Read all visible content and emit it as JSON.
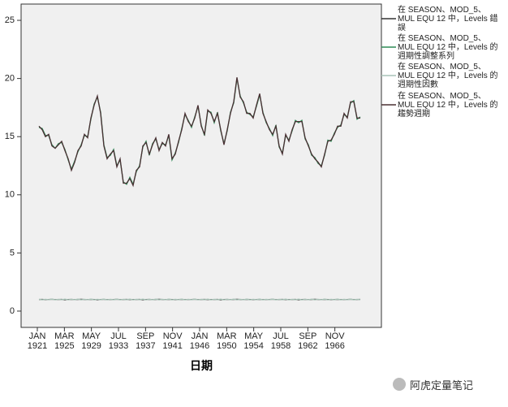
{
  "chart_data": {
    "type": "line",
    "x_label": "日期",
    "x": [
      1921.25,
      1921.75,
      1922.25,
      1922.75,
      1923.25,
      1923.75,
      1924.25,
      1924.75,
      1925.25,
      1925.75,
      1926.25,
      1926.75,
      1927.25,
      1927.75,
      1928.25,
      1928.75,
      1929.25,
      1929.75,
      1930.25,
      1930.75,
      1931.25,
      1931.75,
      1932.25,
      1932.75,
      1933.25,
      1933.75,
      1934.25,
      1934.75,
      1935.25,
      1935.75,
      1936.25,
      1936.75,
      1937.25,
      1937.75,
      1938.25,
      1938.75,
      1939.25,
      1939.75,
      1940.25,
      1940.75,
      1941.25,
      1941.75,
      1942.25,
      1942.75,
      1943.25,
      1943.75,
      1944.25,
      1944.75,
      1945.25,
      1945.75,
      1946.25,
      1946.75,
      1947.25,
      1947.75,
      1948.25,
      1948.75,
      1949.25,
      1949.75,
      1950.25,
      1950.75,
      1951.25,
      1951.75,
      1952.25,
      1952.75,
      1953.25,
      1953.75,
      1954.25,
      1954.75,
      1955.25,
      1955.75,
      1956.25,
      1956.75,
      1957.25,
      1957.75,
      1958.25,
      1958.75,
      1959.25,
      1959.75,
      1960.25,
      1960.75,
      1961.25,
      1961.75,
      1962.25,
      1962.75,
      1963.25,
      1963.75,
      1964.25,
      1964.75,
      1965.25,
      1965.75,
      1966.25,
      1966.75,
      1967.25,
      1967.75,
      1968.25,
      1968.75,
      1969.25,
      1969.75,
      1970.25,
      1970.75
    ],
    "series": [
      {
        "name": "在 SEASON、MOD_5、MUL EQU 12 中，Levels 錯誤",
        "color": "#333333",
        "values": [
          1.0,
          1.01,
          0.99,
          1.0,
          1.02,
          0.99,
          1.0,
          1.01,
          0.98,
          1.0,
          1.01,
          0.99,
          1.0,
          1.02,
          1.0,
          0.99,
          1.01,
          1.0,
          0.98,
          1.0,
          1.01,
          0.99,
          1.0,
          1.0,
          1.02,
          0.99,
          1.0,
          1.01,
          0.99,
          1.0,
          1.0,
          1.01,
          0.98,
          1.0,
          1.01,
          0.99,
          1.0,
          1.02,
          1.0,
          0.99,
          1.01,
          1.0,
          0.99,
          1.0,
          1.01,
          0.99,
          1.0,
          1.0,
          1.02,
          0.99,
          1.0,
          1.01,
          0.99,
          1.0,
          1.0,
          1.01,
          0.98,
          1.0,
          1.01,
          0.99,
          1.0,
          1.02,
          1.0,
          0.99,
          1.01,
          1.0,
          0.99,
          1.0,
          1.01,
          0.99,
          1.0,
          1.0,
          1.02,
          0.99,
          1.0,
          1.01,
          0.99,
          1.0,
          1.0,
          1.01,
          0.98,
          1.0,
          1.01,
          0.99,
          1.0,
          1.02,
          1.0,
          0.99,
          1.01,
          1.0,
          0.99,
          1.0,
          1.01,
          0.99,
          1.0,
          1.0,
          1.02,
          0.99,
          1.0,
          1.01
        ]
      },
      {
        "name": "在 SEASON、MOD_5、MUL EQU 12 中，Levels 的週期性調整系列",
        "color": "#2e8b57",
        "values": [
          15.8,
          15.7,
          15.1,
          15.1,
          14.3,
          14.0,
          14.4,
          14.5,
          13.9,
          13.0,
          12.2,
          12.9,
          13.7,
          14.3,
          15.1,
          15.0,
          16.5,
          17.8,
          18.4,
          17.1,
          14.3,
          13.2,
          13.4,
          13.9,
          12.5,
          13.0,
          11.1,
          10.9,
          11.5,
          10.9,
          12.0,
          12.5,
          14.1,
          14.6,
          13.4,
          14.4,
          14.8,
          13.9,
          14.4,
          14.3,
          15.1,
          13.0,
          13.6,
          14.5,
          15.7,
          16.9,
          16.4,
          15.8,
          16.7,
          17.6,
          16.0,
          15.1,
          17.2,
          17.1,
          16.2,
          17.1,
          15.5,
          14.4,
          15.5,
          17.1,
          17.9,
          20.0,
          18.5,
          17.9,
          17.1,
          16.9,
          16.7,
          17.6,
          18.6,
          17.1,
          16.2,
          15.7,
          15.1,
          16.0,
          14.1,
          13.6,
          15.1,
          14.7,
          15.5,
          16.4,
          16.2,
          16.4,
          14.8,
          14.3,
          13.4,
          13.2,
          12.7,
          12.5,
          13.4,
          14.7,
          14.6,
          15.3,
          15.8,
          16.0,
          16.9,
          16.7,
          17.9,
          18.1,
          16.5,
          16.7
        ]
      },
      {
        "name": "在 SEASON、MOD_5、MUL EQU 12 中，Levels 的週期性因數",
        "color": "#a9c4b8",
        "values": [
          1.03,
          0.97,
          1.02,
          0.98,
          1.03,
          0.97,
          1.02,
          0.98,
          1.03,
          0.97,
          1.02,
          0.98,
          1.03,
          0.97,
          1.02,
          0.98,
          1.03,
          0.97,
          1.02,
          0.98,
          1.03,
          0.97,
          1.02,
          0.98,
          1.03,
          0.97,
          1.02,
          0.98,
          1.03,
          0.97,
          1.02,
          0.98,
          1.03,
          0.97,
          1.02,
          0.98,
          1.03,
          0.97,
          1.02,
          0.98,
          1.03,
          0.97,
          1.02,
          0.98,
          1.03,
          0.97,
          1.02,
          0.98,
          1.03,
          0.97,
          1.02,
          0.98,
          1.03,
          0.97,
          1.02,
          0.98,
          1.03,
          0.97,
          1.02,
          0.98,
          1.03,
          0.97,
          1.02,
          0.98,
          1.03,
          0.97,
          1.02,
          0.98,
          1.03,
          0.97,
          1.02,
          0.98,
          1.03,
          0.97,
          1.02,
          0.98,
          1.03,
          0.97,
          1.02,
          0.98,
          1.03,
          0.97,
          1.02,
          0.98,
          1.03,
          0.97,
          1.02,
          0.98,
          1.03,
          0.97,
          1.02,
          0.98,
          1.03,
          0.97,
          1.02,
          0.98,
          1.03,
          0.97,
          1.02,
          0.98
        ]
      },
      {
        "name": "在 SEASON、MOD_5、MUL EQU 12 中，Levels 的趨勢週期",
        "color": "#4a3034",
        "values": [
          15.9,
          15.6,
          15.0,
          15.2,
          14.2,
          14.0,
          14.3,
          14.6,
          13.8,
          13.1,
          12.1,
          12.8,
          13.8,
          14.2,
          15.2,
          14.9,
          16.6,
          17.7,
          18.5,
          17.0,
          14.2,
          13.1,
          13.5,
          13.8,
          12.4,
          13.1,
          11.0,
          11.0,
          11.4,
          10.8,
          12.1,
          12.4,
          14.2,
          14.5,
          13.5,
          14.3,
          14.9,
          13.8,
          14.5,
          14.2,
          15.2,
          13.1,
          13.5,
          14.6,
          15.6,
          17.0,
          16.3,
          15.9,
          16.6,
          17.7,
          15.9,
          15.2,
          17.3,
          17.0,
          16.3,
          17.0,
          15.6,
          14.3,
          15.6,
          17.0,
          18.0,
          20.1,
          18.4,
          18.0,
          17.0,
          17.0,
          16.6,
          17.7,
          18.7,
          17.0,
          16.3,
          15.6,
          15.2,
          15.9,
          14.2,
          13.5,
          15.2,
          14.6,
          15.6,
          16.3,
          16.3,
          16.3,
          14.9,
          14.2,
          13.5,
          13.1,
          12.8,
          12.4,
          13.5,
          14.6,
          14.7,
          15.2,
          15.9,
          15.9,
          17.0,
          16.6,
          18.0,
          18.0,
          16.6,
          16.6
        ]
      }
    ],
    "xlim": [
      1918.5,
      1974
    ],
    "xticks": [
      {
        "value": 1921,
        "label": "JAN 1921"
      },
      {
        "value": 1925.17,
        "label": "MAR 1925"
      },
      {
        "value": 1929.33,
        "label": "MAY 1929"
      },
      {
        "value": 1933.5,
        "label": "JUL 1933"
      },
      {
        "value": 1937.67,
        "label": "SEP 1937"
      },
      {
        "value": 1941.83,
        "label": "NOV 1941"
      },
      {
        "value": 1946,
        "label": "JAN 1946"
      },
      {
        "value": 1950.17,
        "label": "MAR 1950"
      },
      {
        "value": 1954.33,
        "label": "MAY 1954"
      },
      {
        "value": 1958.5,
        "label": "JUL 1958"
      },
      {
        "value": 1962.67,
        "label": "SEP 1962"
      },
      {
        "value": 1966.83,
        "label": "NOV 1966"
      }
    ],
    "ylim": [
      -1.4,
      26.4
    ],
    "yticks": [
      0,
      5,
      10,
      15,
      20,
      25
    ],
    "grid": false,
    "legend": "right"
  },
  "watermark": "阿虎定量笔记"
}
